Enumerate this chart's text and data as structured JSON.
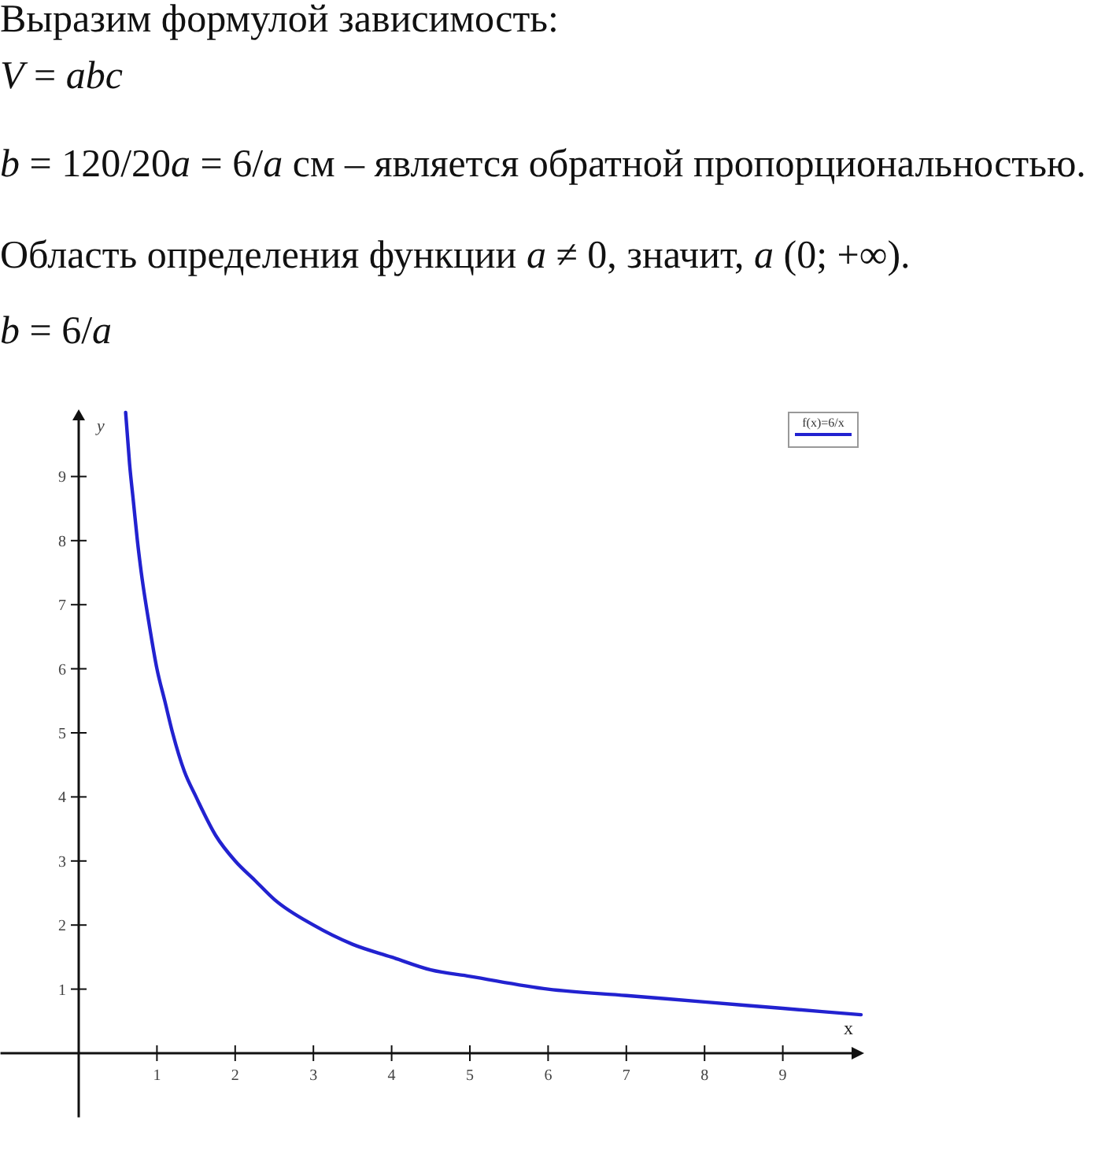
{
  "chart_data": {
    "type": "line",
    "title": "Выразим формулой зависимость:",
    "annotations": [
      "V = abc",
      "b = 120/20a = 6/a см – является обратной пропорциональностью.",
      "Область определения функции a ≠ 0, значит, a (0; +∞).",
      "b = 6/a"
    ],
    "xlabel": "x",
    "ylabel": "y",
    "x": [
      0.6,
      0.65,
      0.7,
      0.75,
      0.8,
      0.9,
      1,
      1.1,
      1.2,
      1.35,
      1.5,
      1.75,
      2,
      2.25,
      2.5,
      3,
      3.5,
      4,
      4.5,
      5,
      6,
      7,
      8,
      9,
      10
    ],
    "series": [
      {
        "name": "f(x)=6/x",
        "color": "#2222d0",
        "values": [
          10,
          9.2,
          8.6,
          8,
          7.5,
          6.7,
          6,
          5.5,
          5,
          4.4,
          4,
          3.4,
          3,
          2.7,
          2.4,
          2,
          1.7,
          1.5,
          1.3,
          1.2,
          1,
          0.9,
          0.8,
          0.7,
          0.6
        ]
      }
    ],
    "xlim": [
      -1,
      10
    ],
    "ylim": [
      -1,
      10
    ],
    "xticks": [
      1,
      2,
      3,
      4,
      5,
      6,
      7,
      8,
      9
    ],
    "yticks": [
      1,
      2,
      3,
      4,
      5,
      6,
      7,
      8,
      9
    ],
    "legend": "top right"
  }
}
